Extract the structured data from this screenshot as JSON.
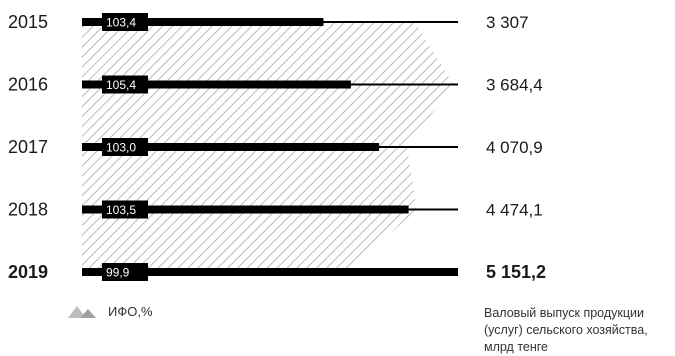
{
  "chart_data": {
    "type": "bar",
    "orientation": "horizontal",
    "categories": [
      "2015",
      "2016",
      "2017",
      "2018",
      "2019"
    ],
    "highlight_category": "2019",
    "series": [
      {
        "name": "Валовый выпуск продукции (услуг) сельского хозяйства, млрд тенге",
        "values": [
          3307,
          3684.4,
          4070.9,
          4474.1,
          5151.2
        ],
        "value_labels": [
          "3 307",
          "3 684,4",
          "4 070,9",
          "4 474,1",
          "5 151,2"
        ]
      },
      {
        "name": "ИФО,%",
        "values": [
          103.4,
          105.4,
          103.0,
          103.5,
          99.9
        ],
        "value_labels": [
          "103,4",
          "105,4",
          "103,0",
          "103,5",
          "99,9"
        ]
      }
    ],
    "xlim": [
      0,
      5151.2
    ],
    "area_shape": "hatched",
    "colors": {
      "bar": "#000000",
      "hatch": "#a8a8a8",
      "badge_text": "#ffffff"
    }
  },
  "legend": {
    "ifo_label": "ИФО,%",
    "ifo_icon": "hatched-triangles-icon",
    "output_label": "Валовый выпуск продукции (услуг) сельского хозяйства, млрд тенге"
  }
}
